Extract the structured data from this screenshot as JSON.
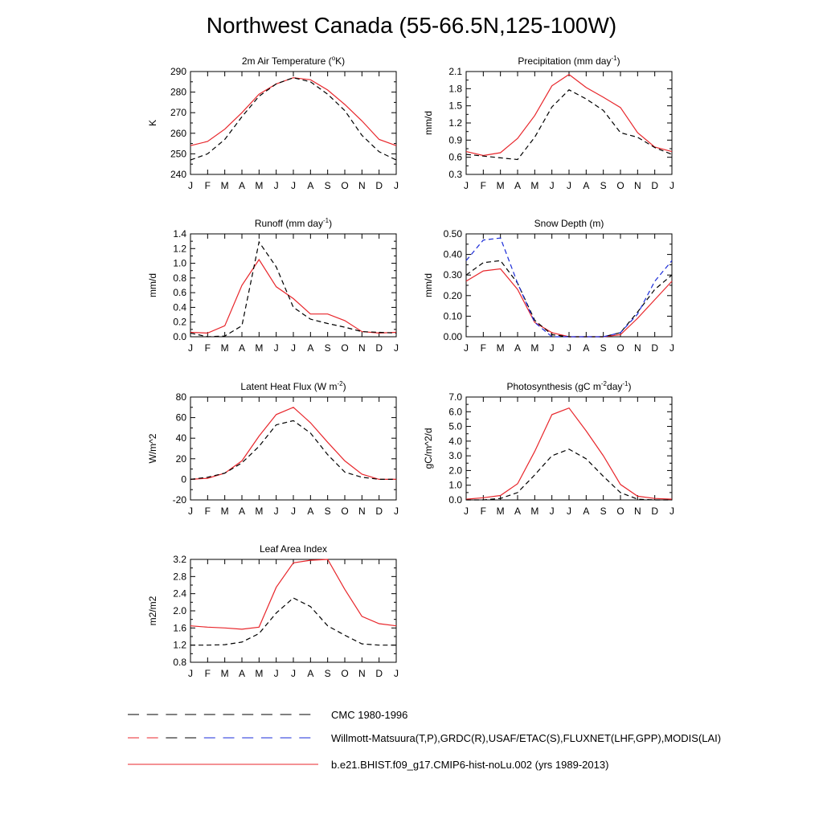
{
  "title": "Northwest Canada (55-66.5N,125-100W)",
  "months": [
    "J",
    "F",
    "M",
    "A",
    "M",
    "J",
    "J",
    "A",
    "S",
    "O",
    "N",
    "D",
    "J"
  ],
  "colors": {
    "model": "#e8262b",
    "obs": "#000000",
    "obs_alt": "#1a2bd8"
  },
  "legend": [
    {
      "label": "CMC 1980-1996",
      "style": "dashed",
      "color": "#000000"
    },
    {
      "label": "Willmott-Matsuura(T,P),GRDC(R),USAF/ETAC(S),FLUXNET(LHF,GPP),MODIS(LAI)",
      "style": "dashed-mixed",
      "color": "#000000"
    },
    {
      "label": "b.e21.BHIST.f09_g17.CMIP6-hist-noLu.002 (yrs 1989-2013)",
      "style": "solid",
      "color": "#e8262b"
    }
  ],
  "chart_data": [
    {
      "type": "line",
      "title": "2m Air Temperature (°K)",
      "title_main": "2m Air Temperature (",
      "title_sup": "o",
      "title_tail": "K)",
      "ylabel": "K",
      "ylim": [
        240,
        290
      ],
      "yticks": [
        "240",
        "250",
        "260",
        "270",
        "280",
        "290"
      ],
      "series": [
        {
          "style": "solid",
          "color": "#e8262b",
          "values": [
            254,
            256,
            262,
            270,
            279,
            284,
            287,
            286,
            281,
            274,
            266,
            257,
            254
          ]
        },
        {
          "style": "dashed",
          "color": "#000000",
          "values": [
            247,
            250,
            257,
            268,
            278,
            284,
            287,
            285,
            279,
            271,
            259,
            251,
            247
          ]
        }
      ]
    },
    {
      "type": "line",
      "title": "Precipitation (mm day-1)",
      "title_main": "Precipitation (mm day",
      "title_sup": "-1",
      "title_tail": ")",
      "ylabel": "mm/d",
      "ylim": [
        0.3,
        2.1
      ],
      "yticks": [
        "0.3",
        "0.6",
        "0.9",
        "1.2",
        "1.5",
        "1.8",
        "2.1"
      ],
      "series": [
        {
          "style": "solid",
          "color": "#e8262b",
          "values": [
            0.7,
            0.63,
            0.68,
            0.93,
            1.33,
            1.85,
            2.05,
            1.82,
            1.65,
            1.47,
            1.03,
            0.78,
            0.7
          ]
        },
        {
          "style": "dashed",
          "color": "#000000",
          "values": [
            0.65,
            0.62,
            0.59,
            0.56,
            0.95,
            1.48,
            1.78,
            1.62,
            1.42,
            1.03,
            0.95,
            0.77,
            0.65
          ]
        }
      ]
    },
    {
      "type": "line",
      "title": "Runoff (mm day-1)",
      "title_main": "Runoff (mm day",
      "title_sup": "-1",
      "title_tail": ")",
      "ylabel": "mm/d",
      "ylim": [
        0.0,
        1.4
      ],
      "yticks": [
        "0.0",
        "0.2",
        "0.4",
        "0.6",
        "0.8",
        "1.0",
        "1.2",
        "1.4"
      ],
      "series": [
        {
          "style": "solid",
          "color": "#e8262b",
          "values": [
            0.06,
            0.05,
            0.15,
            0.7,
            1.05,
            0.68,
            0.52,
            0.31,
            0.31,
            0.22,
            0.07,
            0.05,
            0.06
          ]
        },
        {
          "style": "dashed",
          "color": "#000000",
          "values": [
            0.05,
            0.0,
            0.01,
            0.15,
            1.29,
            0.95,
            0.4,
            0.24,
            0.18,
            0.13,
            0.07,
            0.06,
            0.05
          ]
        }
      ]
    },
    {
      "type": "line",
      "title": "Snow Depth (m)",
      "title_main": "Snow Depth (m)",
      "title_sup": "",
      "title_tail": "",
      "ylabel": "mm/d",
      "ylim": [
        0.0,
        0.5
      ],
      "yticks": [
        "0.00",
        "0.10",
        "0.20",
        "0.30",
        "0.40",
        "0.50"
      ],
      "series": [
        {
          "style": "solid",
          "color": "#e8262b",
          "values": [
            0.27,
            0.32,
            0.33,
            0.23,
            0.07,
            0.02,
            0.0,
            0.0,
            0.0,
            0.01,
            0.09,
            0.18,
            0.27
          ]
        },
        {
          "style": "dashed",
          "color": "#000000",
          "values": [
            0.3,
            0.36,
            0.37,
            0.26,
            0.08,
            0.01,
            0.0,
            0.0,
            0.0,
            0.02,
            0.12,
            0.23,
            0.3
          ]
        },
        {
          "style": "dashed",
          "color": "#1a2bd8",
          "values": [
            0.37,
            0.47,
            0.48,
            0.26,
            0.07,
            0.0,
            0.0,
            0.0,
            0.0,
            0.02,
            0.11,
            0.27,
            0.37
          ]
        }
      ]
    },
    {
      "type": "line",
      "title": "Latent Heat Flux (W m-2)",
      "title_main": "Latent Heat Flux (W m",
      "title_sup": "-2",
      "title_tail": ")",
      "ylabel": "W/m^2",
      "ylim": [
        -20,
        80
      ],
      "yticks": [
        "-20",
        "0",
        "20",
        "40",
        "60",
        "80"
      ],
      "series": [
        {
          "style": "solid",
          "color": "#e8262b",
          "values": [
            0,
            1,
            6,
            18,
            42,
            63,
            70,
            55,
            36,
            18,
            5,
            0,
            0
          ]
        },
        {
          "style": "dashed",
          "color": "#000000",
          "values": [
            0,
            2,
            6,
            16,
            32,
            53,
            57,
            45,
            24,
            7,
            2,
            0,
            0
          ]
        }
      ]
    },
    {
      "type": "line",
      "title": "Photosynthesis (gC m-2day-1)",
      "title_main": "Photosynthesis (gC m",
      "title_sup": "-2",
      "title_tail": "day",
      "title_sup2": "-1",
      "title_tail2": ")",
      "ylabel": "gC/m^2/d",
      "ylim": [
        0.0,
        7.0
      ],
      "yticks": [
        "0.0",
        "1.0",
        "2.0",
        "3.0",
        "4.0",
        "5.0",
        "6.0",
        "7.0"
      ],
      "series": [
        {
          "style": "solid",
          "color": "#e8262b",
          "values": [
            0.05,
            0.15,
            0.3,
            1.1,
            3.3,
            5.8,
            6.25,
            4.7,
            3.0,
            1.05,
            0.25,
            0.1,
            0.05
          ]
        },
        {
          "style": "dashed",
          "color": "#000000",
          "values": [
            0.0,
            0.0,
            0.1,
            0.5,
            1.7,
            3.0,
            3.45,
            2.8,
            1.6,
            0.5,
            0.05,
            0.0,
            0.0
          ]
        }
      ]
    },
    {
      "type": "line",
      "title": "Leaf Area Index",
      "title_main": "Leaf Area Index",
      "title_sup": "",
      "title_tail": "",
      "ylabel": "m2/m2",
      "ylim": [
        0.8,
        3.2
      ],
      "yticks": [
        "0.8",
        "1.2",
        "1.6",
        "2.0",
        "2.4",
        "2.8",
        "3.2"
      ],
      "series": [
        {
          "style": "solid",
          "color": "#e8262b",
          "values": [
            1.65,
            1.62,
            1.6,
            1.57,
            1.62,
            2.55,
            3.12,
            3.18,
            3.2,
            2.5,
            1.87,
            1.7,
            1.65
          ]
        },
        {
          "style": "dashed",
          "color": "#000000",
          "values": [
            1.2,
            1.2,
            1.21,
            1.27,
            1.47,
            1.95,
            2.3,
            2.1,
            1.65,
            1.43,
            1.23,
            1.2,
            1.2
          ]
        }
      ]
    }
  ]
}
